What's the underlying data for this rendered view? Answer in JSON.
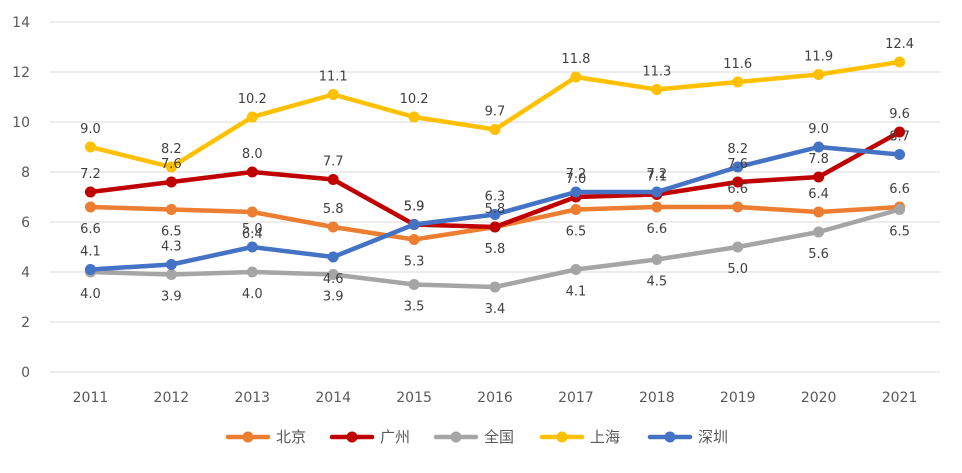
{
  "chart_data": {
    "type": "line",
    "title": "",
    "xlabel": "",
    "ylabel": "",
    "ylim": [
      0,
      14
    ],
    "yticks": [
      "0",
      "2",
      "4",
      "6",
      "8",
      "10",
      "12",
      "14"
    ],
    "grid": true,
    "legend_position": "bottom",
    "categories": [
      "2011",
      "2012",
      "2013",
      "2014",
      "2015",
      "2016",
      "2017",
      "2018",
      "2019",
      "2020",
      "2021"
    ],
    "series": [
      {
        "name": "北京",
        "color": "#ED7D31",
        "values": [
          6.6,
          6.5,
          6.4,
          5.8,
          5.3,
          5.8,
          6.5,
          6.6,
          6.6,
          6.4,
          6.6
        ],
        "labels": [
          "6.6",
          "6.5",
          "6.4",
          "5.8",
          "5.3",
          "5.8",
          "6.5",
          "6.6",
          "6.6",
          "6.4",
          "6.6"
        ]
      },
      {
        "name": "广州",
        "color": "#C00000",
        "values": [
          7.2,
          7.6,
          8.0,
          7.7,
          5.9,
          5.8,
          7.0,
          7.1,
          7.6,
          7.8,
          9.6
        ],
        "labels": [
          "7.2",
          "7.6",
          "8.0",
          "7.7",
          "5.9",
          "5.8",
          "7.0",
          "7.1",
          "7.6",
          "7.8",
          "9.6"
        ]
      },
      {
        "name": "全国",
        "color": "#A5A5A5",
        "values": [
          4.0,
          3.9,
          4.0,
          3.9,
          3.5,
          3.4,
          4.1,
          4.5,
          5.0,
          5.6,
          6.5
        ],
        "labels": [
          "4.0",
          "3.9",
          "4.0",
          "3.9",
          "3.5",
          "3.4",
          "4.1",
          "4.5",
          "5.0",
          "5.6",
          "6.5"
        ]
      },
      {
        "name": "上海",
        "color": "#FFC000",
        "values": [
          9.0,
          8.2,
          10.2,
          11.1,
          10.2,
          9.7,
          11.8,
          11.3,
          11.6,
          11.9,
          12.4
        ],
        "labels": [
          "9.0",
          "8.2",
          "10.2",
          "11.1",
          "10.2",
          "9.7",
          "11.8",
          "11.3",
          "11.6",
          "11.9",
          "12.4"
        ]
      },
      {
        "name": "深圳",
        "color": "#4472C4",
        "values": [
          4.1,
          4.3,
          5.0,
          4.6,
          5.9,
          6.3,
          7.2,
          7.2,
          8.2,
          9.0,
          8.7
        ],
        "labels": [
          "4.1",
          "4.3",
          "5.0",
          "4.6",
          "5.9",
          "6.3",
          "7.2",
          "7.2",
          "8.2",
          "9.0",
          "8.7"
        ]
      }
    ]
  }
}
